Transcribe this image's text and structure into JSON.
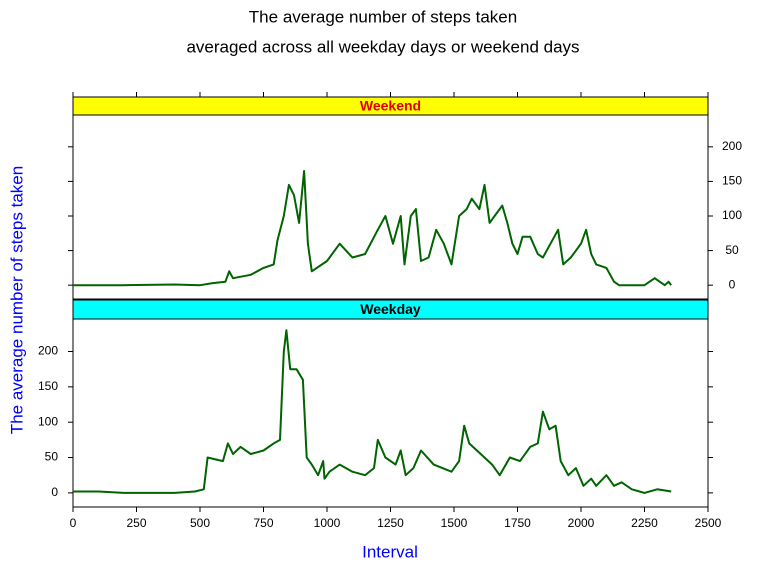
{
  "chart_data": {
    "type": "line",
    "title": "The average number of steps taken",
    "subtitle": "averaged across all weekday days or weekend days",
    "xlabel": "Interval",
    "ylabel": "The average number of steps  taken",
    "xlim": [
      0,
      2500
    ],
    "xticks": [
      0,
      250,
      500,
      750,
      1000,
      1250,
      1500,
      1750,
      2000,
      2250,
      2500
    ],
    "ylim": [
      -20,
      246
    ],
    "yticks": [
      0,
      50,
      100,
      150,
      200
    ],
    "line_color": "#006400",
    "panels": [
      {
        "name": "Weekend",
        "strip_color": "#ffff00",
        "name_color": "#e00000",
        "x": [
          0,
          200,
          400,
          500,
          550,
          600,
          615,
          630,
          700,
          750,
          790,
          805,
          830,
          850,
          870,
          890,
          910,
          925,
          940,
          1000,
          1050,
          1100,
          1150,
          1200,
          1230,
          1260,
          1290,
          1305,
          1330,
          1350,
          1370,
          1400,
          1430,
          1460,
          1490,
          1520,
          1550,
          1570,
          1600,
          1620,
          1640,
          1660,
          1690,
          1710,
          1730,
          1750,
          1770,
          1800,
          1830,
          1850,
          1880,
          1910,
          1930,
          1960,
          2000,
          2020,
          2040,
          2060,
          2100,
          2130,
          2150,
          2200,
          2250,
          2290,
          2310,
          2330,
          2345,
          2355
        ],
        "values": [
          0,
          0,
          1,
          0,
          3,
          5,
          20,
          10,
          15,
          25,
          30,
          65,
          100,
          145,
          130,
          90,
          165,
          60,
          20,
          35,
          60,
          40,
          45,
          80,
          100,
          60,
          100,
          30,
          100,
          110,
          35,
          40,
          80,
          60,
          30,
          100,
          110,
          125,
          110,
          145,
          90,
          100,
          115,
          90,
          60,
          45,
          70,
          70,
          45,
          40,
          60,
          80,
          30,
          40,
          60,
          80,
          45,
          30,
          25,
          5,
          0,
          0,
          0,
          10,
          5,
          0,
          5,
          0
        ]
      },
      {
        "name": "Weekday",
        "strip_color": "#00ffff",
        "name_color": "#000000",
        "x": [
          0,
          100,
          200,
          300,
          400,
          480,
          515,
          530,
          590,
          610,
          630,
          660,
          700,
          750,
          790,
          815,
          830,
          840,
          855,
          880,
          905,
          920,
          940,
          965,
          985,
          990,
          1010,
          1050,
          1100,
          1150,
          1185,
          1200,
          1230,
          1270,
          1290,
          1310,
          1340,
          1370,
          1420,
          1490,
          1520,
          1540,
          1560,
          1590,
          1620,
          1650,
          1680,
          1720,
          1760,
          1800,
          1830,
          1850,
          1875,
          1900,
          1920,
          1950,
          1980,
          2010,
          2040,
          2060,
          2100,
          2130,
          2160,
          2200,
          2250,
          2300,
          2355
        ],
        "values": [
          2,
          2,
          0,
          0,
          0,
          2,
          5,
          50,
          45,
          70,
          55,
          65,
          55,
          60,
          70,
          75,
          200,
          230,
          175,
          175,
          160,
          50,
          40,
          25,
          45,
          20,
          30,
          40,
          30,
          25,
          35,
          75,
          50,
          40,
          60,
          25,
          35,
          60,
          40,
          30,
          45,
          95,
          70,
          60,
          50,
          40,
          25,
          50,
          45,
          65,
          70,
          115,
          90,
          95,
          45,
          25,
          35,
          10,
          20,
          10,
          25,
          10,
          15,
          5,
          0,
          5,
          2
        ]
      }
    ]
  }
}
